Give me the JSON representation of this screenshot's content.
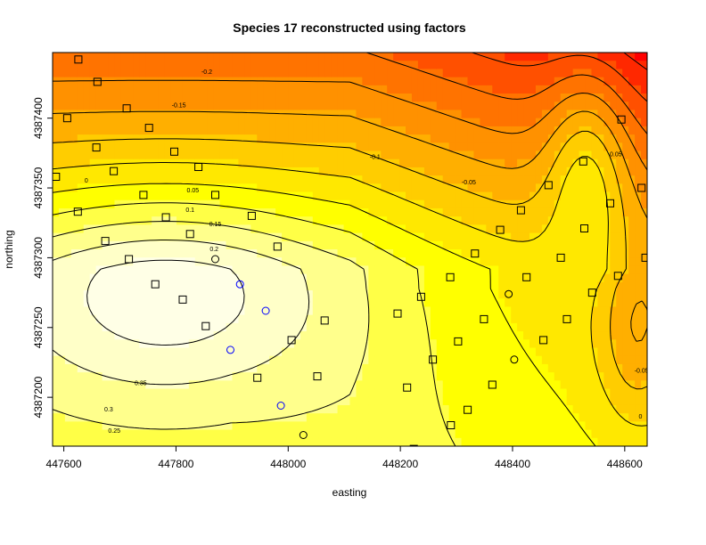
{
  "chart_data": {
    "type": "heatmap",
    "title": "Species 17 reconstructed using factors",
    "xlabel": "easting",
    "ylabel": "northing",
    "xlim": [
      447580,
      448640
    ],
    "ylim": [
      4387165,
      4387447
    ],
    "x_ticks": [
      447600,
      447800,
      448000,
      448200,
      448400,
      448600
    ],
    "y_ticks": [
      4387200,
      4387250,
      4387300,
      4387350,
      4387400
    ],
    "colors": {
      "low": "#ff0000",
      "mid_low": "#ff7f00",
      "mid": "#ffff00",
      "high": "#ffffe0",
      "marker_open": "#000000",
      "marker_circle_blue": "#0000ff"
    },
    "contour_labels": [
      {
        "text": "-0.2",
        "x": 447855,
        "y": 4387433
      },
      {
        "text": "-0.15",
        "x": 447805,
        "y": 4387409
      },
      {
        "text": "-0.1",
        "x": 448155,
        "y": 4387372
      },
      {
        "text": "-0.05",
        "x": 448322,
        "y": 4387354
      },
      {
        "text": "0",
        "x": 447640,
        "y": 4387355
      },
      {
        "text": "0.05",
        "x": 447830,
        "y": 4387348
      },
      {
        "text": "0.1",
        "x": 447825,
        "y": 4387334
      },
      {
        "text": "0.15",
        "x": 447870,
        "y": 4387324
      },
      {
        "text": "0.2",
        "x": 447868,
        "y": 4387306
      },
      {
        "text": "0.25",
        "x": 447690,
        "y": 4387176
      },
      {
        "text": "0.3",
        "x": 447680,
        "y": 4387191
      },
      {
        "text": "0.35",
        "x": 447737,
        "y": 4387210
      },
      {
        "text": "0.05",
        "x": 448584,
        "y": 4387374
      },
      {
        "text": "-0.05",
        "x": 448630,
        "y": 4387219
      },
      {
        "text": "0",
        "x": 448628,
        "y": 4387186
      }
    ],
    "square_points": [
      [
        447626,
        4387442
      ],
      [
        447712,
        4387407
      ],
      [
        447660,
        4387426
      ],
      [
        447606,
        4387400
      ],
      [
        447658,
        4387379
      ],
      [
        447752,
        4387393
      ],
      [
        447797,
        4387376
      ],
      [
        447840,
        4387365
      ],
      [
        447689,
        4387362
      ],
      [
        447586,
        4387358
      ],
      [
        447742,
        4387345
      ],
      [
        447625,
        4387333
      ],
      [
        447674,
        4387312
      ],
      [
        447716,
        4387299
      ],
      [
        447782,
        4387329
      ],
      [
        447825,
        4387317
      ],
      [
        447870,
        4387345
      ],
      [
        447935,
        4387330
      ],
      [
        447981,
        4387308
      ],
      [
        447763,
        4387281
      ],
      [
        447812,
        4387270
      ],
      [
        447853,
        4387251
      ],
      [
        448065,
        4387255
      ],
      [
        448006,
        4387241
      ],
      [
        448052,
        4387215
      ],
      [
        447945,
        4387214
      ],
      [
        448195,
        4387260
      ],
      [
        448237,
        4387272
      ],
      [
        448289,
        4387286
      ],
      [
        448333,
        4387303
      ],
      [
        448378,
        4387320
      ],
      [
        448415,
        4387334
      ],
      [
        448464,
        4387352
      ],
      [
        448526,
        4387369
      ],
      [
        448486,
        4387300
      ],
      [
        448528,
        4387321
      ],
      [
        448574,
        4387339
      ],
      [
        448594,
        4387399
      ],
      [
        448630,
        4387350
      ],
      [
        448637,
        4387300
      ],
      [
        448588,
        4387287
      ],
      [
        448542,
        4387275
      ],
      [
        448497,
        4387256
      ],
      [
        448455,
        4387241
      ],
      [
        448425,
        4387286
      ],
      [
        448349,
        4387256
      ],
      [
        448303,
        4387240
      ],
      [
        448258,
        4387227
      ],
      [
        448212,
        4387207
      ],
      [
        448364,
        4387209
      ],
      [
        448320,
        4387191
      ],
      [
        448290,
        4387180
      ],
      [
        448224,
        4387163
      ]
    ],
    "circle_points_black": [
      [
        447870,
        4387299
      ],
      [
        448393,
        4387274
      ],
      [
        448403,
        4387227
      ],
      [
        448027,
        4387173
      ]
    ],
    "circle_points_blue": [
      [
        447914,
        4387281
      ],
      [
        447960,
        4387262
      ],
      [
        447897,
        4387234
      ],
      [
        447987,
        4387194
      ]
    ]
  }
}
